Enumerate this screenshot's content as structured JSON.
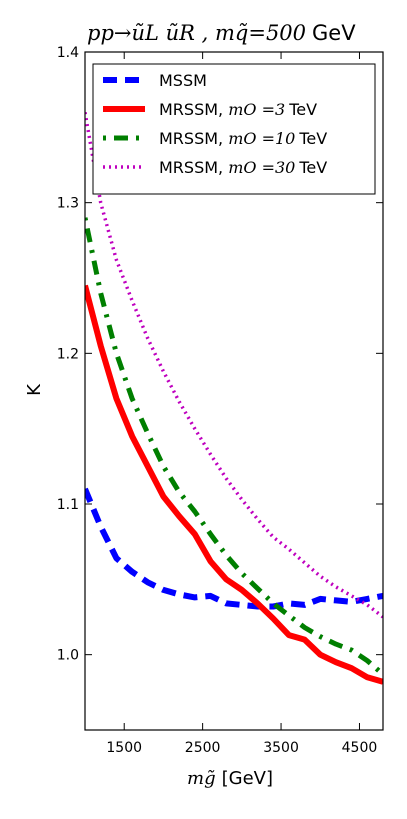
{
  "chart_data": {
    "type": "line",
    "title": {
      "math": "pp→ũL ũR , mq̃=500",
      "unit": "GeV"
    },
    "xlabel": {
      "math": "mg̃",
      "unit": "[GeV]"
    },
    "ylabel": "K",
    "xlim": [
      1000,
      4800
    ],
    "ylim": [
      0.95,
      1.4
    ],
    "xticks": [
      1500,
      2500,
      3500,
      4500
    ],
    "yticks": [
      1.0,
      1.1,
      1.2,
      1.3,
      1.4
    ],
    "xtick_labels": [
      "1500",
      "2500",
      "3500",
      "4500"
    ],
    "ytick_labels": [
      "1.0",
      "1.1",
      "1.2",
      "1.3",
      "1.4"
    ],
    "legend_position": "top",
    "legend": [
      {
        "label": "MSSM",
        "math": ""
      },
      {
        "label": "MRSSM, ",
        "math": "mO =3",
        "unit": "TeV"
      },
      {
        "label": "MRSSM, ",
        "math": "mO =10",
        "unit": "TeV"
      },
      {
        "label": "MRSSM, ",
        "math": "mO =30",
        "unit": "TeV"
      }
    ],
    "series": [
      {
        "name": "MSSM",
        "color": "#0000ff",
        "style": "dashed",
        "x": [
          1000,
          1200,
          1400,
          1600,
          1800,
          2000,
          2200,
          2400,
          2600,
          2800,
          3000,
          3200,
          3400,
          3600,
          3800,
          4000,
          4200,
          4400,
          4600,
          4800
        ],
        "y": [
          1.11,
          1.085,
          1.064,
          1.055,
          1.048,
          1.043,
          1.04,
          1.038,
          1.039,
          1.034,
          1.033,
          1.032,
          1.032,
          1.034,
          1.033,
          1.037,
          1.036,
          1.035,
          1.037,
          1.039
        ]
      },
      {
        "name": "MRSSM, mO =3 TeV",
        "color": "#ff0000",
        "style": "solid",
        "x": [
          1000,
          1200,
          1400,
          1600,
          1800,
          2000,
          2200,
          2400,
          2600,
          2800,
          3000,
          3200,
          3400,
          3600,
          3800,
          4000,
          4200,
          4400,
          4600,
          4800
        ],
        "y": [
          1.245,
          1.205,
          1.17,
          1.145,
          1.125,
          1.105,
          1.092,
          1.08,
          1.062,
          1.05,
          1.043,
          1.034,
          1.024,
          1.013,
          1.01,
          1.0,
          0.995,
          0.991,
          0.985,
          0.982
        ]
      },
      {
        "name": "MRSSM, mO =10 TeV",
        "color": "#007f00",
        "style": "dashdot",
        "x": [
          1000,
          1200,
          1400,
          1600,
          1800,
          2000,
          2200,
          2400,
          2600,
          2800,
          3000,
          3200,
          3400,
          3600,
          3800,
          4000,
          4200,
          4400,
          4600,
          4800
        ],
        "y": [
          1.29,
          1.24,
          1.2,
          1.17,
          1.147,
          1.125,
          1.108,
          1.095,
          1.08,
          1.066,
          1.054,
          1.044,
          1.034,
          1.026,
          1.018,
          1.012,
          1.007,
          1.003,
          0.996,
          0.987
        ]
      },
      {
        "name": "MRSSM, mO =30 TeV",
        "color": "#bf00bf",
        "style": "dotted",
        "x": [
          1000,
          1200,
          1400,
          1600,
          1800,
          2000,
          2200,
          2400,
          2600,
          2800,
          3000,
          3200,
          3400,
          3600,
          3800,
          4000,
          4200,
          4400,
          4600,
          4800
        ],
        "y": [
          1.36,
          1.3,
          1.262,
          1.235,
          1.21,
          1.188,
          1.168,
          1.15,
          1.133,
          1.117,
          1.103,
          1.09,
          1.078,
          1.07,
          1.061,
          1.052,
          1.045,
          1.039,
          1.033,
          1.025
        ]
      }
    ]
  }
}
